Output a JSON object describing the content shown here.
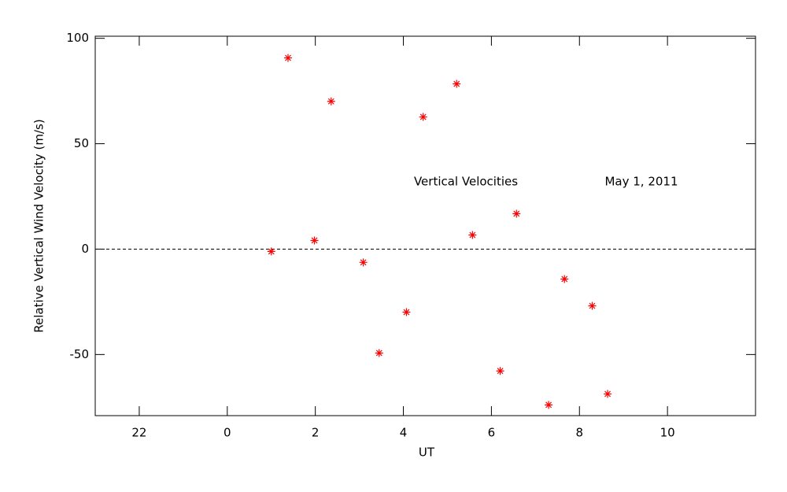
{
  "chart_data": {
    "type": "scatter",
    "x_label": "UT",
    "y_label": "Relative Vertical Wind Velocity (m/s)",
    "annotations": [
      "Vertical Velocities",
      "May 1, 2011"
    ],
    "color": "#ff0000",
    "reference_line": 0,
    "x": [
      1.0,
      1.38,
      1.98,
      2.36,
      3.09,
      3.45,
      4.07,
      4.45,
      5.21,
      5.57,
      6.2,
      6.57,
      7.3,
      7.66,
      8.29,
      8.64
    ],
    "values": [
      -1.1,
      90.7,
      4.1,
      70.1,
      -6.3,
      -49.3,
      -29.9,
      62.7,
      78.4,
      6.7,
      -57.8,
      16.8,
      -73.9,
      -14.2,
      -26.9,
      -68.7
    ],
    "xlim": [
      -3,
      12
    ],
    "xticks": [
      {
        "value": -2,
        "label": "22"
      },
      0,
      2,
      4,
      6,
      8,
      10
    ],
    "ylim": [
      -79,
      101
    ],
    "yticks": [
      -50,
      0,
      50,
      100
    ]
  }
}
